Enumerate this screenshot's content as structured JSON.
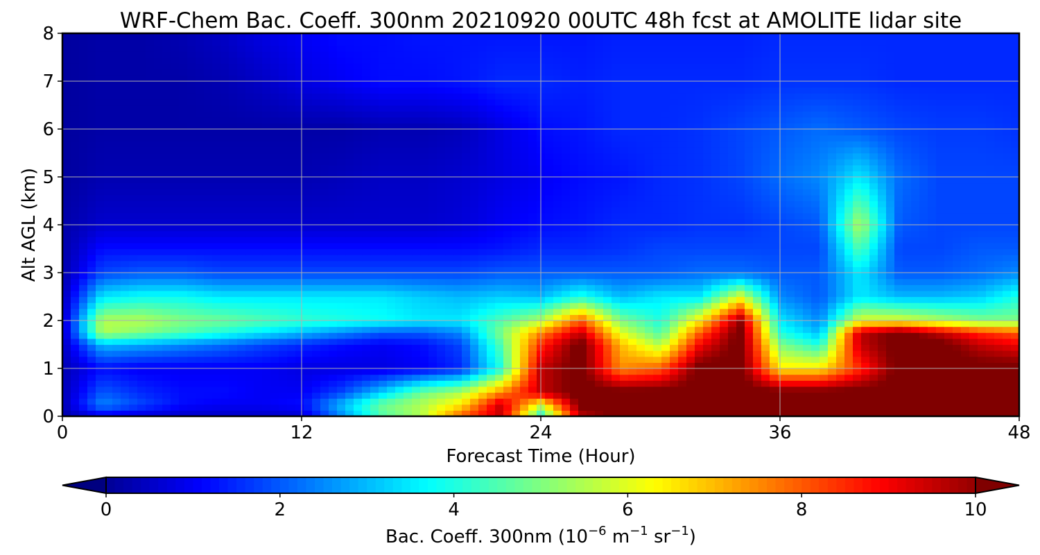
{
  "chart_data": {
    "type": "heatmap",
    "title": "WRF-Chem Bac. Coeff. 300nm  20210920 00UTC 48h fcst at AMOLITE lidar site",
    "xlabel": "Forecast Time (Hour)",
    "ylabel": "Alt AGL (km)",
    "xlim": [
      0,
      48
    ],
    "ylim": [
      0,
      8
    ],
    "xticks": [
      "0",
      "12",
      "24",
      "36",
      "48"
    ],
    "yticks": [
      "0",
      "1",
      "2",
      "3",
      "4",
      "5",
      "6",
      "7",
      "8"
    ],
    "grid": true,
    "colormap": "jet",
    "colorbar": {
      "label_main": "Bac. Coeff. 300nm  (10",
      "label_exp1": "−6",
      "label_mid1": " m",
      "label_exp2": "−1",
      "label_mid2": " sr",
      "label_exp3": "−1",
      "label_end": ")",
      "range": [
        0,
        10
      ],
      "ticks": [
        "0",
        "2",
        "4",
        "6",
        "8",
        "10"
      ],
      "extend": "both",
      "placement": "bottom"
    },
    "x": [
      0,
      2,
      4,
      6,
      8,
      10,
      12,
      14,
      16,
      18,
      20,
      22,
      24,
      26,
      28,
      30,
      32,
      34,
      36,
      38,
      40,
      42,
      44,
      46,
      48
    ],
    "y": [
      0,
      0.25,
      0.5,
      1,
      1.5,
      1.75,
      2,
      2.5,
      3,
      3.5,
      4,
      5,
      6,
      7,
      8
    ],
    "z": [
      [
        0.2,
        0.8,
        0.6,
        0.5,
        0.5,
        0.5,
        0.6,
        2.5,
        4.5,
        5.5,
        8.0,
        9.5,
        4.0,
        9.5,
        10.5,
        10.5,
        10.5,
        10.5,
        10.5,
        10.5,
        10.5,
        10.5,
        10.5,
        10.5,
        10.5
      ],
      [
        0.3,
        2.5,
        1.8,
        1.2,
        1.0,
        1.0,
        1.2,
        3.0,
        4.8,
        5.5,
        6.5,
        9.5,
        6.0,
        10.5,
        10.5,
        10.5,
        10.5,
        10.5,
        10.5,
        10.5,
        10.5,
        10.5,
        10.5,
        10.5,
        10.5
      ],
      [
        0.3,
        2.0,
        1.5,
        1.2,
        1.2,
        1.0,
        1.0,
        1.8,
        3.2,
        4.8,
        5.5,
        7.5,
        9.5,
        10.5,
        10.5,
        10.5,
        10.5,
        10.5,
        10.5,
        10.5,
        10.5,
        10.5,
        10.5,
        10.5,
        10.5
      ],
      [
        0.3,
        1.2,
        1.0,
        1.0,
        1.0,
        1.0,
        0.8,
        0.8,
        0.8,
        1.0,
        1.5,
        4.0,
        9.5,
        10.5,
        7.5,
        8.0,
        10.5,
        10.5,
        6.5,
        6.5,
        8.5,
        10.5,
        10.5,
        10.5,
        10.5
      ],
      [
        0.4,
        3.0,
        2.8,
        2.5,
        2.2,
        1.8,
        1.5,
        1.2,
        1.0,
        1.2,
        1.8,
        4.5,
        8.5,
        10.5,
        7.0,
        5.5,
        9.0,
        10.5,
        5.0,
        4.0,
        9.5,
        10.5,
        10.5,
        9.5,
        9.0
      ],
      [
        0.4,
        5.5,
        5.0,
        4.5,
        4.0,
        3.5,
        3.0,
        2.5,
        2.0,
        2.0,
        2.5,
        5.0,
        7.5,
        9.5,
        6.0,
        4.5,
        8.0,
        10.5,
        4.0,
        3.0,
        9.5,
        10.5,
        9.5,
        8.5,
        8.0
      ],
      [
        0.4,
        5.5,
        5.5,
        5.0,
        4.8,
        4.5,
        4.2,
        4.0,
        3.8,
        3.5,
        3.5,
        4.5,
        5.5,
        8.0,
        5.0,
        4.0,
        6.5,
        10.0,
        3.5,
        2.5,
        6.0,
        6.0,
        5.5,
        5.0,
        5.0
      ],
      [
        0.3,
        3.5,
        3.8,
        3.8,
        3.5,
        3.5,
        3.5,
        3.5,
        3.5,
        3.2,
        3.0,
        3.2,
        3.0,
        4.0,
        3.0,
        3.5,
        3.5,
        6.0,
        2.5,
        2.0,
        3.5,
        3.0,
        3.0,
        3.2,
        4.0
      ],
      [
        0.2,
        1.8,
        2.0,
        2.0,
        1.8,
        1.8,
        1.8,
        1.8,
        1.8,
        1.8,
        1.8,
        2.0,
        2.0,
        2.0,
        2.0,
        2.0,
        2.2,
        2.2,
        2.0,
        2.0,
        3.5,
        2.0,
        2.0,
        2.2,
        2.5
      ],
      [
        0.2,
        1.2,
        1.2,
        1.2,
        1.2,
        1.2,
        1.2,
        1.2,
        1.2,
        1.2,
        1.2,
        1.3,
        1.5,
        1.5,
        1.6,
        1.8,
        1.8,
        1.8,
        1.8,
        1.8,
        4.5,
        1.8,
        1.8,
        2.0,
        2.0
      ],
      [
        0.2,
        0.6,
        0.6,
        0.6,
        0.6,
        0.6,
        0.6,
        0.6,
        0.6,
        0.6,
        0.7,
        1.0,
        1.2,
        1.3,
        1.5,
        1.5,
        1.6,
        1.6,
        1.8,
        2.0,
        5.5,
        2.0,
        1.8,
        1.8,
        1.8
      ],
      [
        0.1,
        0.3,
        0.3,
        0.3,
        0.3,
        0.3,
        0.3,
        0.4,
        0.5,
        0.5,
        0.6,
        0.8,
        1.0,
        1.2,
        1.3,
        1.5,
        1.6,
        1.8,
        2.2,
        2.5,
        3.5,
        2.2,
        1.8,
        1.8,
        1.8
      ],
      [
        0.1,
        0.2,
        0.2,
        0.2,
        0.2,
        0.2,
        0.2,
        0.2,
        0.3,
        0.3,
        0.4,
        0.8,
        1.2,
        1.3,
        1.5,
        1.5,
        1.6,
        1.8,
        2.0,
        2.2,
        2.0,
        1.8,
        1.7,
        1.7,
        1.6
      ],
      [
        0.1,
        0.2,
        0.2,
        0.2,
        0.3,
        0.5,
        0.8,
        1.0,
        1.2,
        1.2,
        1.3,
        1.5,
        1.5,
        1.4,
        1.5,
        1.5,
        1.5,
        1.5,
        1.6,
        1.6,
        1.6,
        1.5,
        1.5,
        1.5,
        1.5
      ],
      [
        0.1,
        0.2,
        0.2,
        0.3,
        0.5,
        0.8,
        1.0,
        1.2,
        1.2,
        1.3,
        1.3,
        1.3,
        1.3,
        1.3,
        1.4,
        1.4,
        1.4,
        1.4,
        1.5,
        1.5,
        1.5,
        1.5,
        1.5,
        1.5,
        1.5
      ]
    ]
  }
}
